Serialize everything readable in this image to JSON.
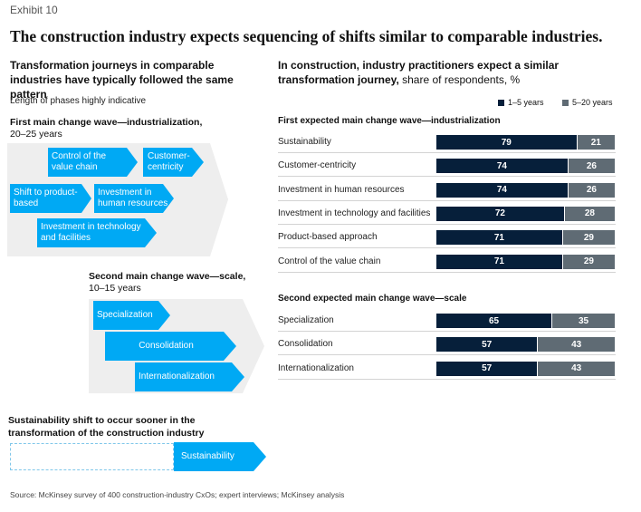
{
  "exhibit": "Exhibit 10",
  "title": "The construction industry expects sequencing of shifts similar to comparable industries.",
  "left": {
    "heading": "Transformation journeys in comparable industries have typically followed the same pattern",
    "subheading": "Length of phases highly indicative",
    "wave1": {
      "title": "First main change wave—industrialization,",
      "years": "20–25 years",
      "items": {
        "value_chain": "Control of the value chain",
        "customer": "Customer-centricity",
        "product": "Shift to product-based",
        "human": "Investment in human resources",
        "tech": "Investment in technology and facilities"
      }
    },
    "wave2": {
      "title": "Second main change wave—scale,",
      "years": "10–15 years",
      "items": {
        "specialization": "Specialization",
        "consolidation": "Consolidation",
        "internationalization": "Internationalization"
      }
    },
    "sustainability": {
      "title": "Sustainability shift to occur sooner in the transformation of the construction industry",
      "label": "Sustainability"
    }
  },
  "right": {
    "heading_bold": "In construction, industry practitioners expect a similar transformation journey,",
    "heading_normal": " share of respondents, %"
  },
  "source": "Source: McKinsey survey of 400 construction-industry CxOs; expert interviews; McKinsey analysis",
  "colors": {
    "accent": "#00a9f4",
    "dark": "#061f3a",
    "gray": "#5f6b74",
    "rule": "#d3d3d3"
  },
  "chart_data": {
    "type": "bar",
    "orientation": "horizontal",
    "stacked": true,
    "legend": [
      "1–5 years",
      "5–20 years"
    ],
    "legend_position": "top-right",
    "groups": [
      {
        "title": "First expected main change wave—industrialization",
        "categories": [
          "Sustainability",
          "Customer-centricity",
          "Investment in human resources",
          "Investment in technology and facilities",
          "Product-based approach",
          "Control of the value chain"
        ],
        "series": [
          {
            "name": "1–5 years",
            "values": [
              79,
              74,
              74,
              72,
              71,
              71
            ]
          },
          {
            "name": "5–20 years",
            "values": [
              21,
              26,
              26,
              28,
              29,
              29
            ]
          }
        ]
      },
      {
        "title": "Second expected main change wave—scale",
        "categories": [
          "Specialization",
          "Consolidation",
          "Internationalization"
        ],
        "series": [
          {
            "name": "1–5 years",
            "values": [
              65,
              57,
              57
            ]
          },
          {
            "name": "5–20 years",
            "values": [
              35,
              43,
              43
            ]
          }
        ]
      }
    ]
  }
}
